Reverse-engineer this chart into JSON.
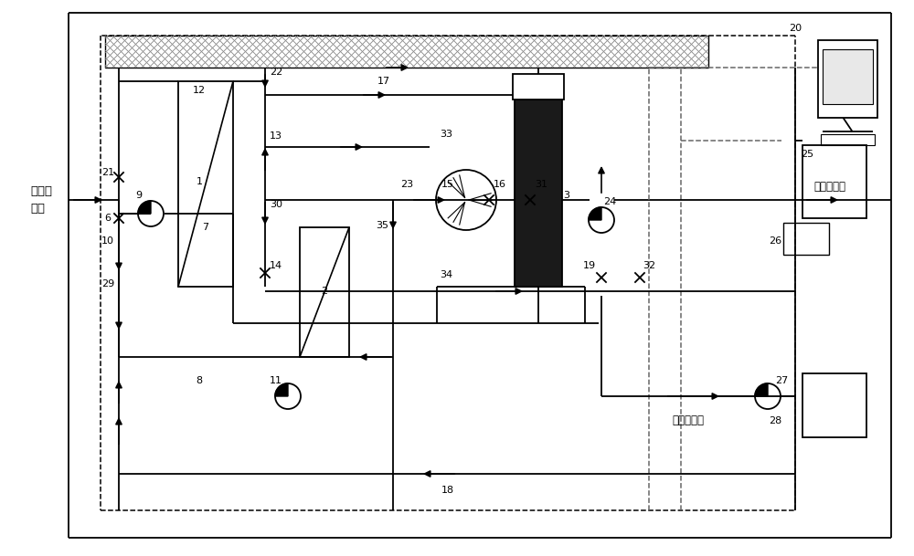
{
  "fig_width": 10.0,
  "fig_height": 6.09,
  "bg_color": "#ffffff",
  "lc": "#000000",
  "dc": "#666666",
  "labels": {
    "leachate_inlet": "滲滤液\n进水",
    "permeate_discharge": "透过液排放",
    "concentrate_discharge": "浓缩液排放"
  }
}
